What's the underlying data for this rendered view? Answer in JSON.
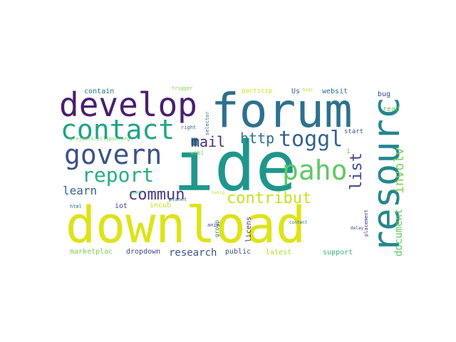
{
  "word_cloud": {
    "words": [
      {
        "text": "download",
        "color": "#dde318"
      },
      {
        "text": "ide",
        "color": "#1f968b"
      },
      {
        "text": "forum",
        "color": "#2d718e"
      },
      {
        "text": "develop",
        "color": "#481f70"
      },
      {
        "text": "resourc",
        "color": "#25858e"
      },
      {
        "text": "contact",
        "color": "#20a386"
      },
      {
        "text": "govern",
        "color": "#3b528b"
      },
      {
        "text": "paho",
        "color": "#5ec962"
      },
      {
        "text": "report",
        "color": "#27ad81"
      },
      {
        "text": "toggl",
        "color": "#33638d"
      },
      {
        "text": "contribut",
        "color": "#c8e020"
      },
      {
        "text": "commun",
        "color": "#453781"
      },
      {
        "text": "list",
        "color": "#404688"
      },
      {
        "text": "mail",
        "color": "#472d7b"
      },
      {
        "text": "http",
        "color": "#2c728e"
      },
      {
        "text": "involv",
        "color": "#7ad151"
      },
      {
        "text": "learn",
        "color": "#33638d"
      },
      {
        "text": "document",
        "color": "#5ec962"
      },
      {
        "text": "research",
        "color": "#3b528b"
      },
      {
        "text": "marketplac",
        "color": "#7ad151"
      },
      {
        "text": "dropdown",
        "color": "#404688"
      },
      {
        "text": "public",
        "color": "#3e4989"
      },
      {
        "text": "latest",
        "color": "#b5de2b"
      },
      {
        "text": "support",
        "color": "#35b779"
      },
      {
        "text": "iot",
        "color": "#3e4989"
      },
      {
        "text": "incub",
        "color": "#c8e020"
      },
      {
        "text": "licens",
        "color": "#472d7b"
      },
      {
        "text": "group",
        "color": "#2a788e"
      },
      {
        "text": "contain",
        "color": "#2c728e"
      },
      {
        "text": "websit",
        "color": "#2c728e"
      },
      {
        "text": "Us",
        "color": "#34618d"
      },
      {
        "text": "bug",
        "color": "#3e4989"
      },
      {
        "text": "read",
        "color": "#5ec962"
      },
      {
        "text": "particip",
        "color": "#d8e219"
      },
      {
        "text": "trigger",
        "color": "#7ad151"
      },
      {
        "text": "start",
        "color": "#3b528b"
      },
      {
        "text": "planet",
        "color": "#33638d"
      },
      {
        "text": "right",
        "color": "#33638d"
      },
      {
        "text": "wiki",
        "color": "#6ece58"
      },
      {
        "text": "selector",
        "color": "#31688e"
      },
      {
        "text": "projects.eclipse.org",
        "color": "#6ece58"
      },
      {
        "text": "event",
        "color": "#35b779"
      },
      {
        "text": "navig",
        "color": "#c0df25"
      },
      {
        "text": "content",
        "color": "#31688e"
      },
      {
        "text": "anim",
        "color": "#433d84"
      },
      {
        "text": "html",
        "color": "#2c728e"
      },
      {
        "text": "delay",
        "color": "#3e4989"
      },
      {
        "text": "placement",
        "color": "#46327e"
      },
      {
        "text": "bodi",
        "color": "#b5de2b"
      },
      {
        "text": "1",
        "color": "#6ece58"
      }
    ]
  }
}
